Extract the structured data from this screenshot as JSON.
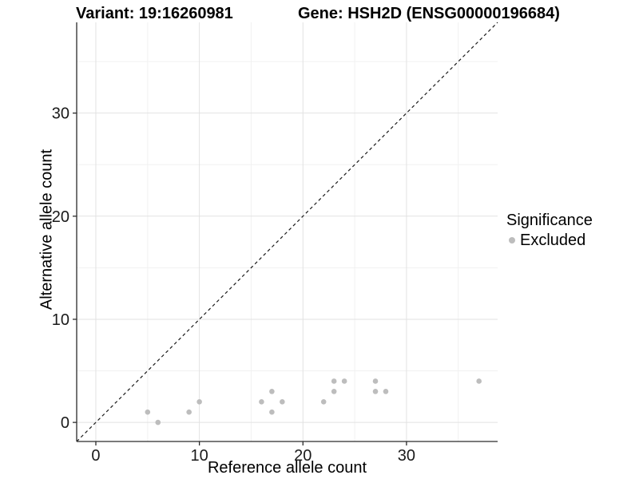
{
  "chart_data": {
    "type": "scatter",
    "title_left": "Variant: 19:16260981",
    "title_right": "Gene: HSH2D (ENSG00000196684)",
    "xlabel": "Reference allele count",
    "ylabel": "Alternative allele count",
    "xlim": [
      -1.85,
      38.8
    ],
    "ylim": [
      -1.85,
      38.8
    ],
    "x_ticks": [
      0,
      10,
      20,
      30
    ],
    "y_ticks": [
      0,
      10,
      20,
      30
    ],
    "x_minor_ticks": [
      5,
      15,
      25,
      35
    ],
    "y_minor_ticks": [
      5,
      15,
      25,
      35
    ],
    "grid": "major and minor gridlines on white background",
    "series": [
      {
        "name": "Excluded",
        "color": "#bdbdbd",
        "points": [
          [
            5,
            1
          ],
          [
            6,
            0
          ],
          [
            9,
            1
          ],
          [
            10,
            2
          ],
          [
            16,
            2
          ],
          [
            17,
            1
          ],
          [
            17,
            3
          ],
          [
            18,
            2
          ],
          [
            22,
            2
          ],
          [
            23,
            3
          ],
          [
            23,
            4
          ],
          [
            24,
            4
          ],
          [
            27,
            3
          ],
          [
            27,
            4
          ],
          [
            28,
            3
          ],
          [
            37,
            4
          ]
        ]
      }
    ],
    "identity_line": {
      "equation": "y = x",
      "style": "dashed",
      "color": "#1a1a1a"
    },
    "legend": {
      "title": "Significance",
      "position": "right",
      "items": [
        {
          "label": "Excluded",
          "color": "#bdbdbd"
        }
      ]
    },
    "colors": {
      "grid_major": "#e2e2e2",
      "grid_minor": "#f1f1f1",
      "axis_line": "#2b2b2b",
      "tick_text": "#1a1a1a",
      "point": "#bdbdbd"
    }
  }
}
